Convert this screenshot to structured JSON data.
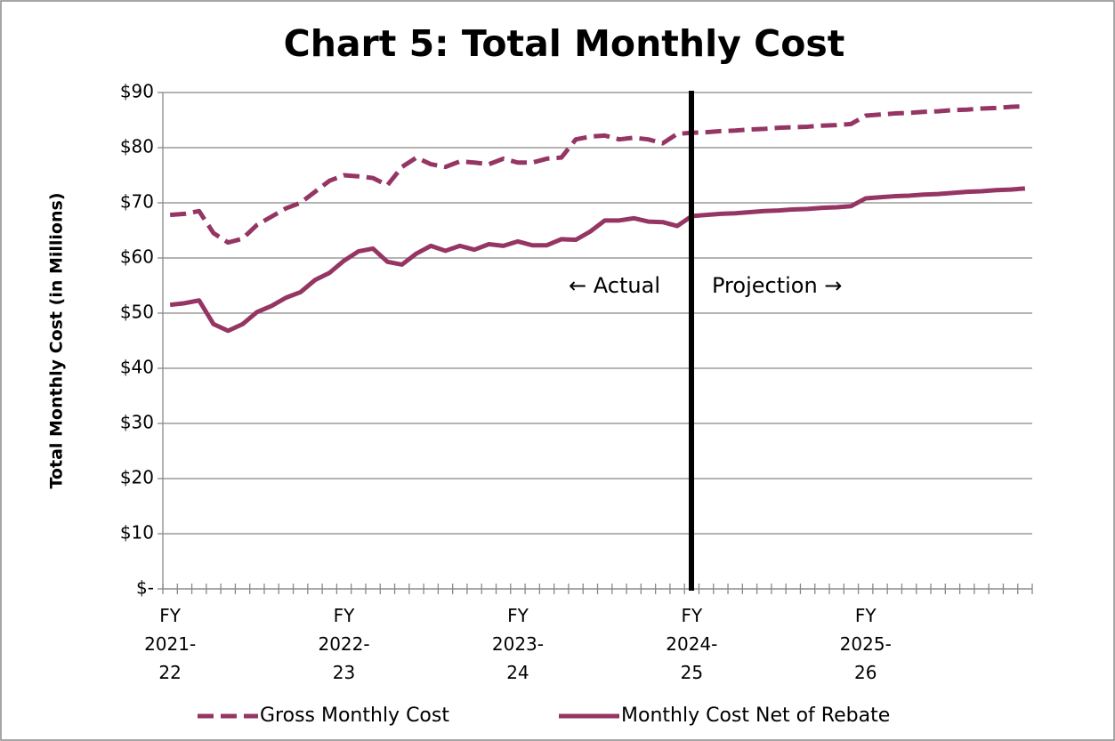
{
  "chart_data": {
    "type": "line",
    "title": "Chart 5: Total Monthly Cost",
    "y_label": "Total Monthly Cost (in Millions)",
    "categories": [
      "FY 2021-22",
      null,
      null,
      null,
      null,
      null,
      null,
      null,
      null,
      null,
      null,
      null,
      "FY 2022-23",
      null,
      null,
      null,
      null,
      null,
      null,
      null,
      null,
      null,
      null,
      null,
      "FY 2023-24",
      null,
      null,
      null,
      null,
      null,
      null,
      null,
      null,
      null,
      null,
      null,
      "FY 2024-25",
      null,
      null,
      null,
      null,
      null,
      null,
      null,
      null,
      null,
      null,
      null,
      "FY 2025-26",
      null,
      null,
      null,
      null,
      null,
      null,
      null,
      null,
      null,
      null,
      null
    ],
    "series": [
      {
        "name": "Gross Monthly Cost",
        "color": "#953563",
        "dashed": true,
        "values": [
          67.8,
          68,
          68.5,
          64.5,
          62.8,
          63.5,
          66,
          67.5,
          69,
          70,
          72,
          74,
          75,
          74.8,
          74.5,
          73.2,
          76.5,
          78.2,
          77,
          76.5,
          77.5,
          77.3,
          77,
          78,
          77.3,
          77.3,
          78,
          78.2,
          81.5,
          82,
          82.2,
          81.5,
          81.8,
          81.5,
          80.8,
          82.5,
          82.7,
          82.8,
          83.0,
          83.1,
          83.3,
          83.4,
          83.6,
          83.7,
          83.8,
          84.0,
          84.1,
          84.3,
          85.8,
          86.0,
          86.2,
          86.3,
          86.5,
          86.6,
          86.8,
          86.9,
          87.1,
          87.2,
          87.4,
          87.5
        ]
      },
      {
        "name": "Monthly Cost Net of Rebate",
        "color": "#953563",
        "dashed": false,
        "values": [
          51.5,
          51.8,
          52.3,
          48,
          46.8,
          48,
          50.2,
          51.3,
          52.8,
          53.8,
          56,
          57.3,
          59.5,
          61.2,
          61.7,
          59.3,
          58.8,
          60.8,
          62.2,
          61.3,
          62.2,
          61.5,
          62.5,
          62.2,
          63,
          62.3,
          62.3,
          63.4,
          63.3,
          64.8,
          66.8,
          66.8,
          67.2,
          66.6,
          66.5,
          65.8,
          67.6,
          67.8,
          68.0,
          68.1,
          68.3,
          68.5,
          68.6,
          68.8,
          68.9,
          69.1,
          69.2,
          69.4,
          70.8,
          71.0,
          71.2,
          71.3,
          71.5,
          71.6,
          71.8,
          72.0,
          72.1,
          72.3,
          72.4,
          72.6
        ]
      }
    ],
    "ylim": [
      0,
      90
    ],
    "yticks": [
      {
        "value": 0,
        "label": "$-"
      },
      {
        "value": 10,
        "label": "$10"
      },
      {
        "value": 20,
        "label": "$20"
      },
      {
        "value": 30,
        "label": "$30"
      },
      {
        "value": 40,
        "label": "$40"
      },
      {
        "value": 50,
        "label": "$50"
      },
      {
        "value": 60,
        "label": "$60"
      },
      {
        "value": 70,
        "label": "$70"
      },
      {
        "value": 80,
        "label": "$80"
      },
      {
        "value": 90,
        "label": "$90"
      }
    ],
    "grid": true,
    "annotations": [
      "← Actual",
      "Projection →"
    ],
    "legend": "bottom"
  }
}
